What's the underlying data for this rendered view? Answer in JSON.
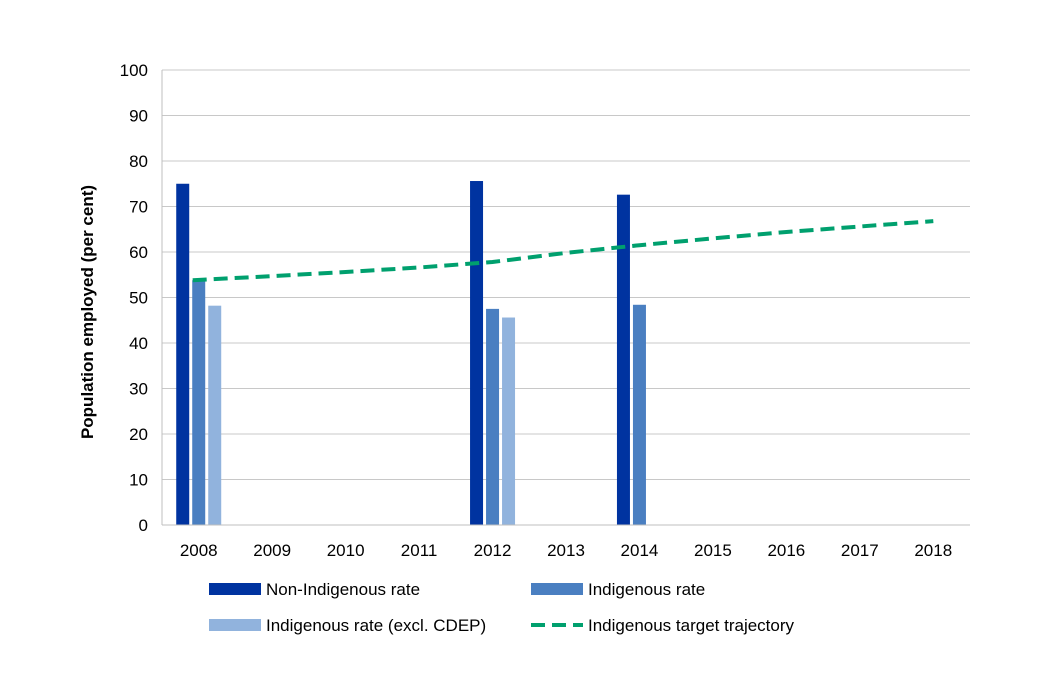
{
  "chart_data": {
    "type": "bar",
    "title": "",
    "xlabel": "",
    "ylabel": "Population employed (per cent)",
    "ylim": [
      0,
      100
    ],
    "yticks": [
      0,
      10,
      20,
      30,
      40,
      50,
      60,
      70,
      80,
      90,
      100
    ],
    "grid": true,
    "legend_position": "bottom",
    "categories": [
      "2008",
      "2009",
      "2010",
      "2011",
      "2012",
      "2013",
      "2014",
      "2015",
      "2016",
      "2017",
      "2018"
    ],
    "series": [
      {
        "name": "Non-Indigenous rate",
        "kind": "bar",
        "color": "#0033a0",
        "values": [
          75.0,
          null,
          null,
          null,
          75.6,
          null,
          72.6,
          null,
          null,
          null,
          null
        ]
      },
      {
        "name": "Indigenous rate",
        "kind": "bar",
        "color": "#4a7fc1",
        "values": [
          53.8,
          null,
          null,
          null,
          47.5,
          null,
          48.4,
          null,
          null,
          null,
          null
        ]
      },
      {
        "name": "Indigenous rate (excl. CDEP)",
        "kind": "bar",
        "color": "#91b3dd",
        "values": [
          48.2,
          null,
          null,
          null,
          45.6,
          null,
          null,
          null,
          null,
          null,
          null
        ]
      },
      {
        "name": "Indigenous target trajectory",
        "kind": "line",
        "style": "dashed",
        "color": "#00a06e",
        "values": [
          53.8,
          54.7,
          55.6,
          56.6,
          57.8,
          59.8,
          61.5,
          63.0,
          64.4,
          65.6,
          66.8
        ]
      }
    ]
  }
}
